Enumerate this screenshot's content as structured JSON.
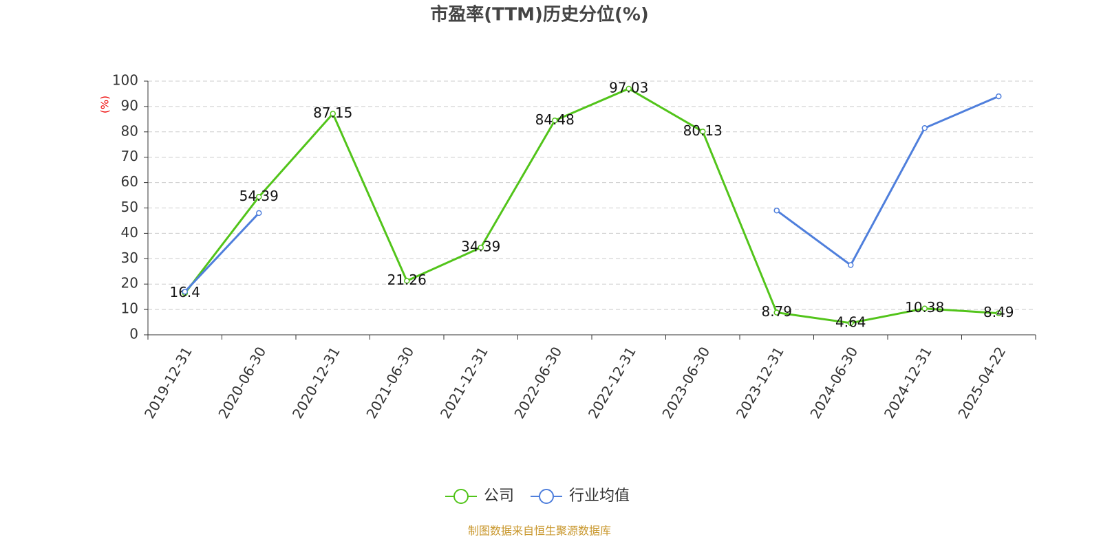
{
  "chart_data": {
    "type": "line",
    "title": "市盈率(TTM)历史分位(%)",
    "y_label": "(%)",
    "source": "制图数据来自恒生聚源数据库",
    "categories": [
      "2019-12-31",
      "2020-06-30",
      "2020-12-31",
      "2021-06-30",
      "2021-12-31",
      "2022-06-30",
      "2022-12-31",
      "2023-06-30",
      "2023-12-31",
      "2024-06-30",
      "2024-12-31",
      "2025-04-22"
    ],
    "series": [
      {
        "name": "公司",
        "color": "#52c41a",
        "values": [
          16.4,
          54.39,
          87.15,
          21.26,
          34.39,
          84.48,
          97.03,
          80.13,
          8.79,
          4.64,
          10.38,
          8.49
        ],
        "show_labels": true
      },
      {
        "name": "行业均值",
        "color": "#4f7fdc",
        "values": [
          17,
          48,
          null,
          null,
          null,
          null,
          null,
          null,
          49,
          27.5,
          81.5,
          94
        ],
        "show_labels": false
      }
    ],
    "ylim": [
      0,
      100
    ],
    "yticks": [
      0,
      10,
      20,
      30,
      40,
      50,
      60,
      70,
      80,
      90,
      100
    ],
    "grid": true,
    "legend": "bottom"
  }
}
